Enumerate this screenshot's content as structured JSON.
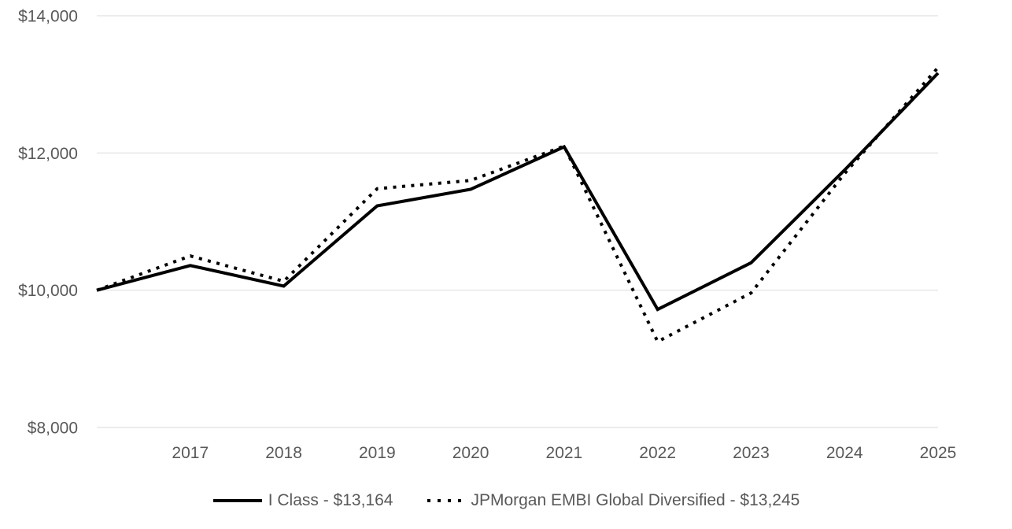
{
  "chart_data": {
    "type": "line",
    "title": "",
    "xlabel": "",
    "ylabel": "",
    "x": [
      2016,
      2017,
      2018,
      2019,
      2020,
      2021,
      2022,
      2023,
      2024,
      2025
    ],
    "xlim": [
      2016,
      2025
    ],
    "ylim": [
      8000,
      14000
    ],
    "x_ticks": [
      {
        "x": 2017,
        "label": "2017"
      },
      {
        "x": 2018,
        "label": "2018"
      },
      {
        "x": 2019,
        "label": "2019"
      },
      {
        "x": 2020,
        "label": "2020"
      },
      {
        "x": 2021,
        "label": "2021"
      },
      {
        "x": 2022,
        "label": "2022"
      },
      {
        "x": 2023,
        "label": "2023"
      },
      {
        "x": 2024,
        "label": "2024"
      },
      {
        "x": 2025,
        "label": "2025"
      }
    ],
    "y_ticks": [
      {
        "value": 14000,
        "label": "$14,000"
      },
      {
        "value": 12000,
        "label": "$12,000"
      },
      {
        "value": 10000,
        "label": "$10,000"
      },
      {
        "value": 8000,
        "label": "$8,000"
      }
    ],
    "grid": "horizontal-only",
    "legend_position": "bottom-center",
    "series": [
      {
        "name": "I Class - $13,164",
        "line_style": "solid",
        "color": "#000000",
        "values": [
          10000,
          10360,
          10060,
          11230,
          11470,
          12090,
          9720,
          10400,
          11750,
          13164
        ]
      },
      {
        "name": "JPMorgan EMBI Global Diversified - $13,245",
        "line_style": "dotted",
        "color": "#000000",
        "values": [
          10000,
          10500,
          10130,
          11480,
          11600,
          12100,
          9250,
          9960,
          11700,
          13245
        ]
      }
    ],
    "colors": {
      "grid": "#e6e6e6",
      "tick_labels": "#595959",
      "lines": "#000000",
      "background": "#ffffff"
    }
  }
}
